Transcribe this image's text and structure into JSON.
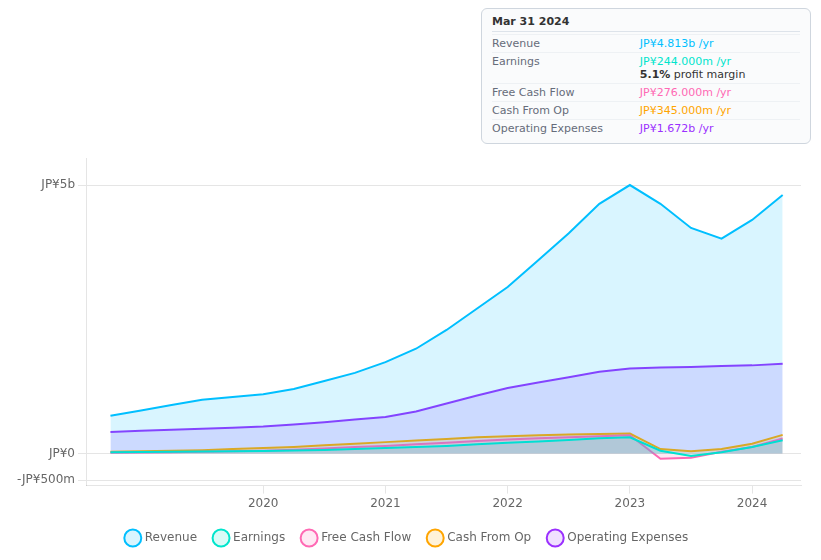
{
  "chart_data": {
    "type": "area",
    "x": [
      2018.75,
      2019.0,
      2019.25,
      2019.5,
      2019.75,
      2020.0,
      2020.25,
      2020.5,
      2020.75,
      2021.0,
      2021.25,
      2021.5,
      2021.75,
      2022.0,
      2022.25,
      2022.5,
      2022.75,
      2023.0,
      2023.25,
      2023.5,
      2023.75,
      2024.0,
      2024.25
    ],
    "series": [
      {
        "name": "Revenue",
        "color": "#00bfff",
        "values": [
          700000000,
          800000000,
          900000000,
          1000000000,
          1050000000,
          1100000000,
          1200000000,
          1350000000,
          1500000000,
          1700000000,
          1950000000,
          2300000000,
          2700000000,
          3100000000,
          3600000000,
          4100000000,
          4650000000,
          5000000000,
          4650000000,
          4200000000,
          4000000000,
          4350000000,
          4813000000
        ]
      },
      {
        "name": "Earnings",
        "color": "#00e5cc",
        "values": [
          20000000,
          25000000,
          30000000,
          35000000,
          40000000,
          45000000,
          55000000,
          65000000,
          80000000,
          100000000,
          120000000,
          140000000,
          170000000,
          200000000,
          220000000,
          250000000,
          280000000,
          300000000,
          50000000,
          -50000000,
          20000000,
          120000000,
          244000000
        ]
      },
      {
        "name": "Free Cash Flow",
        "color": "#ff69b4",
        "values": [
          10000000,
          15000000,
          20000000,
          30000000,
          40000000,
          50000000,
          70000000,
          90000000,
          120000000,
          140000000,
          170000000,
          200000000,
          230000000,
          260000000,
          280000000,
          300000000,
          320000000,
          340000000,
          -100000000,
          -80000000,
          30000000,
          120000000,
          276000000
        ]
      },
      {
        "name": "Cash From Op",
        "color": "#ffa500",
        "values": [
          30000000,
          40000000,
          50000000,
          60000000,
          80000000,
          100000000,
          120000000,
          150000000,
          180000000,
          210000000,
          240000000,
          270000000,
          300000000,
          320000000,
          340000000,
          350000000,
          360000000,
          370000000,
          80000000,
          40000000,
          80000000,
          180000000,
          345000000
        ]
      },
      {
        "name": "Operating Expenses",
        "color": "#9b30ff",
        "values": [
          400000000,
          420000000,
          440000000,
          460000000,
          480000000,
          500000000,
          540000000,
          580000000,
          630000000,
          680000000,
          780000000,
          930000000,
          1080000000,
          1220000000,
          1320000000,
          1420000000,
          1520000000,
          1580000000,
          1600000000,
          1610000000,
          1630000000,
          1640000000,
          1672000000
        ]
      }
    ],
    "xlim": [
      2018.55,
      2024.4
    ],
    "xticks": [
      2020,
      2021,
      2022,
      2023,
      2024
    ],
    "ylim": [
      -600000000,
      5500000000
    ],
    "yticks": [
      {
        "value": -500000000,
        "label": "-JP¥500m"
      },
      {
        "value": 0,
        "label": "JP¥0"
      },
      {
        "value": 5000000000,
        "label": "JP¥5b"
      }
    ],
    "grid": "y",
    "legend": "bottom",
    "annotations": [
      {
        "title": "Mar 31 2024",
        "rows": [
          {
            "label": "Revenue",
            "value": "JP¥4.813b /yr",
            "color": "#00bfff"
          },
          {
            "label": "Earnings",
            "value": "JP¥244.000m /yr",
            "color": "#00e5cc",
            "sub": "5.1% profit margin"
          },
          {
            "label": "Free Cash Flow",
            "value": "JP¥276.000m /yr",
            "color": "#ff69b4"
          },
          {
            "label": "Cash From Op",
            "value": "JP¥345.000m /yr",
            "color": "#ffa500"
          },
          {
            "label": "Operating Expenses",
            "value": "JP¥1.672b /yr",
            "color": "#9b30ff"
          }
        ]
      }
    ]
  }
}
